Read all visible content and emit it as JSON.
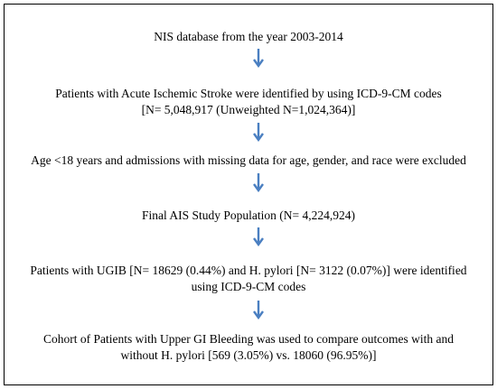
{
  "flowchart": {
    "steps": [
      {
        "id": "source",
        "lines": [
          "NIS database from the year 2003-2014"
        ]
      },
      {
        "id": "ais-identified",
        "lines": [
          "Patients with Acute Ischemic Stroke were identified by using ICD-9-CM codes",
          "[N= 5,048,917 (Unweighted N=1,024,364)]"
        ]
      },
      {
        "id": "exclusion",
        "lines": [
          "Age <18 years and admissions with missing data for age, gender, and race were excluded"
        ]
      },
      {
        "id": "study-population",
        "lines": [
          "Final AIS Study Population (N= 4,224,924)"
        ]
      },
      {
        "id": "ugib-hpylori",
        "lines": [
          "Patients with UGIB [N= 18629 (0.44%) and H. pylori [N= 3122 (0.07%)] were identified",
          "using ICD-9-CM codes"
        ]
      },
      {
        "id": "cohort-comparison",
        "lines": [
          "Cohort of Patients with Upper GI Bleeding was used to compare outcomes with and",
          "without H. pylori [569 (3.05%) vs. 18060 (96.95%)]"
        ]
      }
    ],
    "arrow_color": "#4a7fc1",
    "arrow_icon": "down-arrow-icon"
  }
}
